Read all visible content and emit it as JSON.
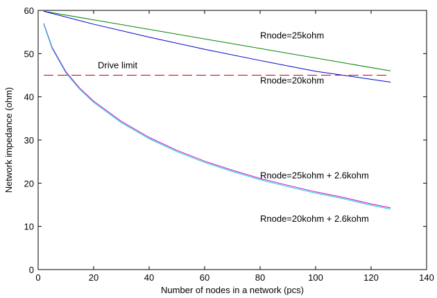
{
  "chart_data": {
    "type": "line",
    "title": "",
    "xlabel": "Number of nodes in a network (pcs)",
    "ylabel": "Network impedance (ohm)",
    "xlim": [
      0,
      140
    ],
    "ylim": [
      0,
      60
    ],
    "xticks": [
      0,
      20,
      40,
      60,
      80,
      100,
      120,
      140
    ],
    "yticks": [
      0,
      10,
      20,
      30,
      40,
      50,
      60
    ],
    "grid": false,
    "legend": "none",
    "series": [
      {
        "color": "#008000",
        "style": "solid",
        "x": [
          2,
          127
        ],
        "y": [
          59.8,
          46.0
        ]
      },
      {
        "color": "#0000cc",
        "style": "solid",
        "x": [
          2,
          20,
          40,
          60,
          80,
          100,
          127
        ],
        "y": [
          59.8,
          56.8,
          53.8,
          51.0,
          48.4,
          45.9,
          43.4
        ]
      },
      {
        "color": "#cc00cc",
        "style": "solid",
        "x": [
          2,
          5,
          10,
          15,
          20,
          30,
          40,
          50,
          60,
          70,
          80,
          90,
          100,
          110,
          120,
          127
        ],
        "y": [
          57.0,
          51.5,
          45.8,
          42.0,
          39.0,
          34.3,
          30.6,
          27.6,
          25.1,
          23.0,
          21.1,
          19.5,
          18.0,
          16.7,
          15.2,
          14.3
        ]
      },
      {
        "color": "#00cccc",
        "style": "solid",
        "x": [
          2,
          5,
          10,
          15,
          20,
          30,
          40,
          50,
          60,
          70,
          80,
          90,
          100,
          110,
          120,
          127
        ],
        "y": [
          56.8,
          51.2,
          45.5,
          41.7,
          38.7,
          34.0,
          30.3,
          27.3,
          24.8,
          22.7,
          20.8,
          19.2,
          17.7,
          16.4,
          14.9,
          14.0
        ]
      },
      {
        "color": "#cc0000",
        "style": "dashed",
        "x": [
          2,
          127
        ],
        "y": [
          45,
          45
        ]
      }
    ],
    "annotations": [
      {
        "text": "Rnode=25kohm",
        "x": 80,
        "y": 53.5
      },
      {
        "text": "Rnode=20kohm",
        "x": 80,
        "y": 43.1
      },
      {
        "text": "Drive limit",
        "x": 21.5,
        "y": 46.6
      },
      {
        "text": "Rnode=25kohm + 2.6kohm",
        "x": 80,
        "y": 21.1
      },
      {
        "text": "Rnode=20kohm + 2.6kohm",
        "x": 80,
        "y": 11.1
      }
    ]
  }
}
